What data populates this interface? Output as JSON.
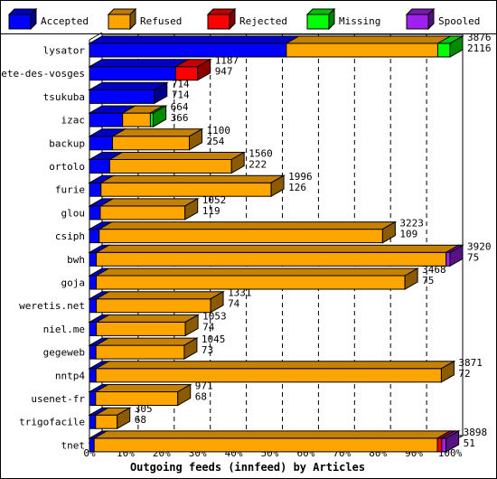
{
  "chart_data": {
    "type": "bar",
    "title": "",
    "xlabel": "Outgoing feeds (innfeed) by Articles",
    "ylabel": "",
    "xlim": [
      0,
      100
    ],
    "x_unit": "%",
    "x_ticks": [
      "0%",
      "10%",
      "20%",
      "30%",
      "40%",
      "50%",
      "60%",
      "70%",
      "80%",
      "90%",
      "100%"
    ],
    "stacked": true,
    "grid": "vertical dashed",
    "legend_position": "top",
    "series": [
      {
        "name": "Accepted",
        "color": "#0000ff"
      },
      {
        "name": "Refused",
        "color": "#ffa500"
      },
      {
        "name": "Rejected",
        "color": "#ff0000"
      },
      {
        "name": "Missing",
        "color": "#00ff00"
      },
      {
        "name": "Spooled",
        "color": "#a020f0"
      }
    ],
    "categories": [
      "lysator",
      "bete-des-vosges",
      "tsukuba",
      "izac",
      "backup",
      "ortolo",
      "furie",
      "glou",
      "csiph",
      "bwh",
      "goja",
      "weretis.net",
      "niel.me",
      "gegeweb",
      "nntp4",
      "usenet-fr",
      "trigofacile",
      "tnet"
    ],
    "rows": [
      {
        "name": "lysator",
        "offered": "3876",
        "accepted": "2116",
        "values": [
          54.6,
          42.0,
          0,
          3.4,
          0
        ]
      },
      {
        "name": "bete-des-vosges",
        "offered": "1187",
        "accepted": "947",
        "values": [
          23.9,
          0,
          6.1,
          0,
          0
        ]
      },
      {
        "name": "tsukuba",
        "offered": "714",
        "accepted": "714",
        "values": [
          18.0,
          0,
          0,
          0,
          0
        ]
      },
      {
        "name": "izac",
        "offered": "664",
        "accepted": "366",
        "values": [
          9.2,
          7.7,
          0,
          0.8,
          0
        ]
      },
      {
        "name": "backup",
        "offered": "1100",
        "accepted": "254",
        "values": [
          6.4,
          21.3,
          0,
          0,
          0
        ]
      },
      {
        "name": "ortolo",
        "offered": "1560",
        "accepted": "222",
        "values": [
          5.6,
          33.8,
          0,
          0,
          0
        ]
      },
      {
        "name": "furie",
        "offered": "1996",
        "accepted": "126",
        "values": [
          3.2,
          47.2,
          0,
          0,
          0
        ]
      },
      {
        "name": "glou",
        "offered": "1052",
        "accepted": "119",
        "values": [
          3.0,
          23.5,
          0,
          0,
          0
        ]
      },
      {
        "name": "csiph",
        "offered": "3223",
        "accepted": "109",
        "values": [
          2.7,
          78.6,
          0,
          0,
          0
        ]
      },
      {
        "name": "bwh",
        "offered": "3920",
        "accepted": "75",
        "values": [
          1.9,
          97.0,
          0,
          0,
          1.1
        ]
      },
      {
        "name": "goja",
        "offered": "3468",
        "accepted": "75",
        "values": [
          1.9,
          85.6,
          0,
          0,
          0
        ]
      },
      {
        "name": "weretis.net",
        "offered": "1331",
        "accepted": "74",
        "values": [
          1.9,
          31.7,
          0,
          0,
          0
        ]
      },
      {
        "name": "niel.me",
        "offered": "1053",
        "accepted": "74",
        "values": [
          1.9,
          24.7,
          0,
          0,
          0
        ]
      },
      {
        "name": "gegeweb",
        "offered": "1045",
        "accepted": "73",
        "values": [
          1.8,
          24.5,
          0,
          0,
          0
        ]
      },
      {
        "name": "nntp4",
        "offered": "3871",
        "accepted": "72",
        "values": [
          1.8,
          95.8,
          0,
          0,
          0
        ]
      },
      {
        "name": "usenet-fr",
        "offered": "971",
        "accepted": "68",
        "values": [
          1.7,
          22.8,
          0,
          0,
          0
        ]
      },
      {
        "name": "trigofacile",
        "offered": "305",
        "accepted": "68",
        "values": [
          1.7,
          6.0,
          0,
          0,
          0
        ]
      },
      {
        "name": "tnet",
        "offered": "3898",
        "accepted": "51",
        "values": [
          1.3,
          95.2,
          1.2,
          0,
          1.2
        ]
      }
    ]
  }
}
